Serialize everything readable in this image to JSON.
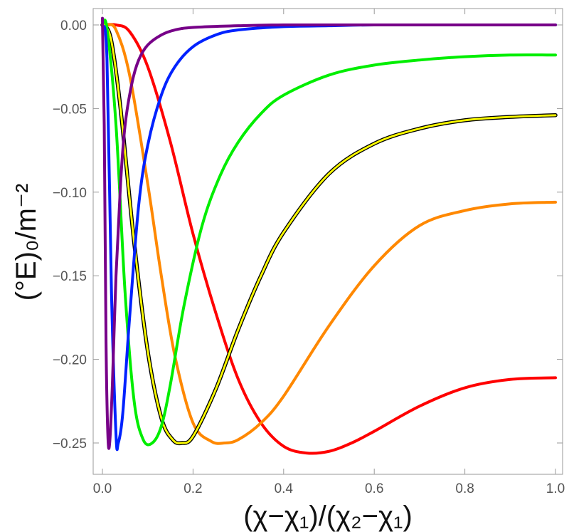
{
  "chart_data": {
    "type": "line",
    "xlabel": "(χ−χ₁)/(χ₂−χ₁)",
    "ylabel": "(°E)₀/m⁻²",
    "xlim": [
      0,
      1
    ],
    "ylim": [
      -0.27,
      0.01
    ],
    "x_ticks": [
      "0.0",
      "0.2",
      "0.4",
      "0.6",
      "0.8",
      "1.0"
    ],
    "y_ticks": [
      "0.00",
      "-0.05",
      "-0.10",
      "-0.15",
      "-0.20",
      "-0.25"
    ],
    "x_tick_values": [
      0,
      0.2,
      0.4,
      0.6,
      0.8,
      1.0
    ],
    "y_tick_values": [
      0,
      -0.05,
      -0.1,
      -0.15,
      -0.2,
      -0.25
    ],
    "grid": false,
    "series": [
      {
        "color": "#ff0000",
        "x": [
          0,
          0.03,
          0.06,
          0.1,
          0.15,
          0.2,
          0.25,
          0.3,
          0.35,
          0.4,
          0.45,
          0.5,
          0.55,
          0.6,
          0.7,
          0.8,
          0.9,
          1.0
        ],
        "y": [
          0,
          0,
          -0.004,
          -0.025,
          -0.07,
          -0.125,
          -0.172,
          -0.212,
          -0.238,
          -0.252,
          -0.256,
          -0.255,
          -0.25,
          -0.243,
          -0.228,
          -0.217,
          -0.212,
          -0.211
        ]
      },
      {
        "color": "#ff8800",
        "x": [
          0,
          0.01,
          0.03,
          0.06,
          0.1,
          0.13,
          0.16,
          0.2,
          0.24,
          0.27,
          0.3,
          0.35,
          0.4,
          0.5,
          0.6,
          0.7,
          0.8,
          0.9,
          1.0
        ],
        "y": [
          0,
          0,
          -0.003,
          -0.03,
          -0.095,
          -0.15,
          -0.198,
          -0.238,
          -0.249,
          -0.25,
          -0.248,
          -0.238,
          -0.222,
          -0.18,
          -0.144,
          -0.12,
          -0.111,
          -0.107,
          -0.106
        ]
      },
      {
        "color": "#ffff00",
        "outline": "#000000",
        "x": [
          0,
          0.005,
          0.02,
          0.04,
          0.07,
          0.1,
          0.13,
          0.155,
          0.175,
          0.2,
          0.25,
          0.3,
          0.35,
          0.4,
          0.5,
          0.6,
          0.7,
          0.8,
          0.9,
          1.0
        ],
        "y": [
          0,
          0,
          -0.01,
          -0.05,
          -0.13,
          -0.195,
          -0.235,
          -0.248,
          -0.25,
          -0.246,
          -0.218,
          -0.182,
          -0.15,
          -0.124,
          -0.089,
          -0.071,
          -0.062,
          -0.057,
          -0.055,
          -0.054
        ]
      },
      {
        "color": "#00ee00",
        "x": [
          0,
          0.01,
          0.03,
          0.05,
          0.07,
          0.09,
          0.11,
          0.13,
          0.15,
          0.18,
          0.22,
          0.26,
          0.3,
          0.35,
          0.4,
          0.5,
          0.6,
          0.7,
          0.8,
          0.9,
          1.0
        ],
        "y": [
          0,
          -0.002,
          -0.06,
          -0.16,
          -0.225,
          -0.248,
          -0.25,
          -0.24,
          -0.215,
          -0.168,
          -0.12,
          -0.09,
          -0.07,
          -0.053,
          -0.042,
          -0.03,
          -0.024,
          -0.021,
          -0.019,
          -0.018,
          -0.018
        ]
      },
      {
        "color": "#0022ff",
        "x": [
          0,
          0.01,
          0.02,
          0.03,
          0.035,
          0.045,
          0.06,
          0.08,
          0.1,
          0.13,
          0.16,
          0.2,
          0.25,
          0.3,
          0.4,
          0.5,
          0.6,
          0.8,
          1.0
        ],
        "y": [
          0,
          -0.02,
          -0.16,
          -0.245,
          -0.25,
          -0.232,
          -0.175,
          -0.108,
          -0.072,
          -0.042,
          -0.025,
          -0.013,
          -0.006,
          -0.003,
          -0.001,
          -0.0005,
          0,
          0,
          0
        ]
      },
      {
        "color": "#770088",
        "x": [
          0,
          0.004,
          0.008,
          0.012,
          0.016,
          0.022,
          0.03,
          0.04,
          0.05,
          0.065,
          0.08,
          0.1,
          0.13,
          0.16,
          0.2,
          0.3,
          0.4,
          0.6,
          0.8,
          1.0
        ],
        "y": [
          0.004,
          -0.06,
          -0.19,
          -0.245,
          -0.25,
          -0.215,
          -0.15,
          -0.095,
          -0.06,
          -0.035,
          -0.021,
          -0.012,
          -0.006,
          -0.003,
          -0.0015,
          -0.0005,
          0,
          0,
          0,
          0
        ]
      }
    ]
  }
}
